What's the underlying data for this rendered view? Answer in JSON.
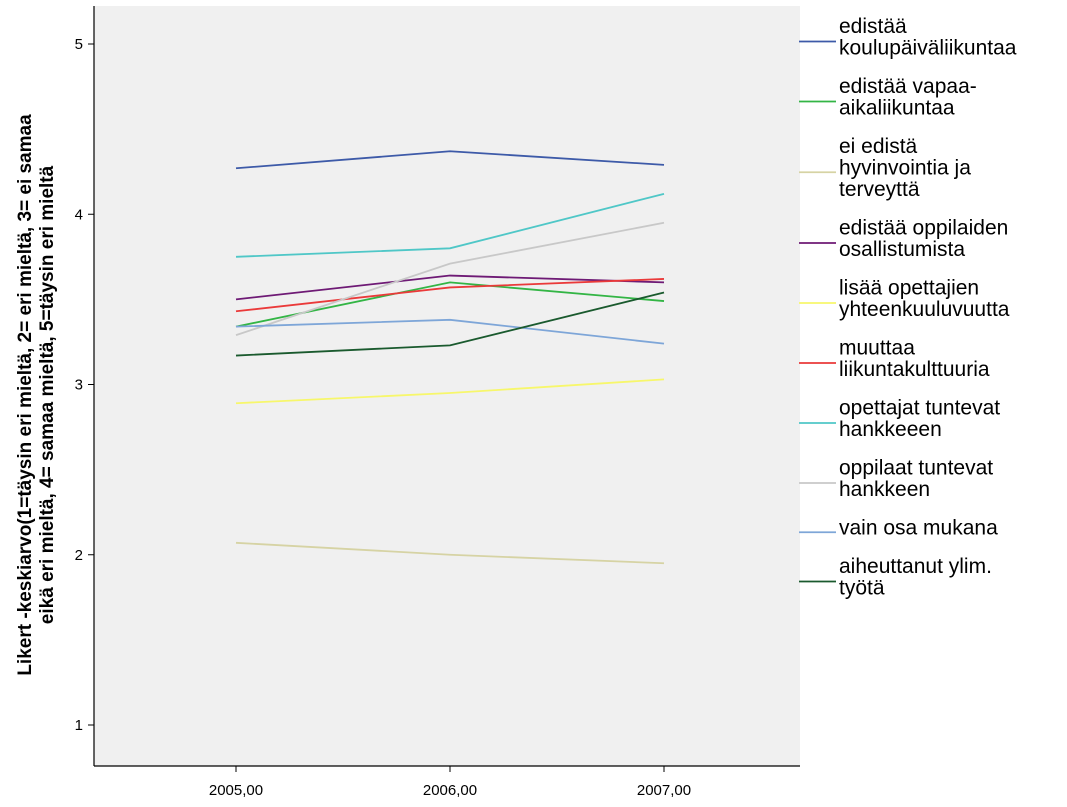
{
  "chart_data": {
    "type": "line",
    "x": [
      "2005,00",
      "2006,00",
      "2007,00"
    ],
    "ylabel": [
      "Likert -keskiarvo(1=täysin eri mieltä, 2= eri mieltä, 3= ei samaa",
      "eikä eri mieltä, 4= samaa mieltä, 5=täysin eri mieltä"
    ],
    "xlabel": "",
    "ylim": [
      1,
      5
    ],
    "yticks": [
      1,
      2,
      3,
      4,
      5
    ],
    "grid": false,
    "legend_position": "right",
    "plot_background": "#f0f0f0",
    "series": [
      {
        "name": [
          "edistää",
          "koulupäiväliikuntaa"
        ],
        "color": "#3d5aa8",
        "values": [
          4.27,
          4.37,
          4.29
        ]
      },
      {
        "name": [
          "edistää vapaa-",
          "aikaliikuntaa"
        ],
        "color": "#33b545",
        "values": [
          3.34,
          3.6,
          3.49
        ]
      },
      {
        "name": [
          "ei edistä",
          "hyvinvointia ja",
          "terveyttä"
        ],
        "color": "#d6d3a4",
        "values": [
          2.07,
          2.0,
          1.95
        ]
      },
      {
        "name": [
          "edistää oppilaiden",
          "osallistumista"
        ],
        "color": "#6e1a75",
        "values": [
          3.5,
          3.64,
          3.6
        ]
      },
      {
        "name": [
          "lisää opettajien",
          "yhteenkuuluvuutta"
        ],
        "color": "#f7f76b",
        "values": [
          2.89,
          2.95,
          3.03
        ]
      },
      {
        "name": [
          "muuttaa",
          "liikuntakulttuuria"
        ],
        "color": "#ea3a3a",
        "values": [
          3.43,
          3.57,
          3.62
        ]
      },
      {
        "name": [
          "opettajat tuntevat",
          "hankkeeen"
        ],
        "color": "#4fc7c7",
        "values": [
          3.75,
          3.8,
          4.12
        ]
      },
      {
        "name": [
          "oppilaat tuntevat",
          "hankkeen"
        ],
        "color": "#c8c8c8",
        "values": [
          3.29,
          3.71,
          3.95
        ]
      },
      {
        "name": [
          "vain osa mukana"
        ],
        "color": "#7ea6d8",
        "values": [
          3.34,
          3.38,
          3.24
        ]
      },
      {
        "name": [
          "aiheuttanut ylim.",
          "työtä"
        ],
        "color": "#1a5a2e",
        "values": [
          3.17,
          3.23,
          3.54
        ]
      }
    ]
  }
}
